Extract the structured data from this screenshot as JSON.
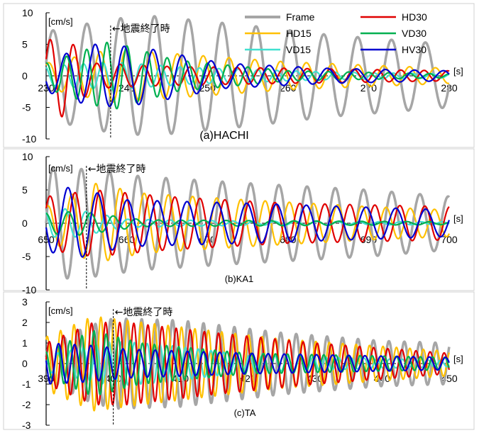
{
  "colors": {
    "Frame": "#A6A6A6",
    "HD15": "#FFC000",
    "VD15": "#40E0D0",
    "HD30": "#E00000",
    "VD30": "#00B050",
    "HV30": "#0000D0"
  },
  "legend": {
    "entries": [
      "Frame",
      "HD15",
      "VD15",
      "HD30",
      "VD30",
      "HV30"
    ],
    "placement": "top-right of panel (a)"
  },
  "chart_data": [
    {
      "type": "line",
      "caption": "(a)HACHI",
      "y_unit_label": "[cm/s]",
      "x_unit_label": "[s]",
      "xlim": [
        230,
        280
      ],
      "xticks": [
        230,
        240,
        250,
        260,
        270,
        280
      ],
      "ylim": [
        -10,
        10
      ],
      "yticks": [
        10,
        5,
        0,
        -5,
        -10
      ],
      "annotation": {
        "text": "←地震終了時",
        "x": 238
      },
      "series": [
        {
          "name": "Frame",
          "period": 4.2,
          "start": 230.0,
          "end": 280.0,
          "phase": 0.3,
          "peaks": [
            [
              230,
              7
            ],
            [
              238,
              9
            ],
            [
              243,
              9.5
            ],
            [
              255,
              8
            ],
            [
              265,
              6.5
            ],
            [
              280,
              5
            ]
          ]
        },
        {
          "name": "HD15",
          "period": 3.2,
          "start": 230.0,
          "end": 280.0,
          "phase": 1.0,
          "peaks": [
            [
              230,
              2
            ],
            [
              238,
              4.2
            ],
            [
              246,
              3.5
            ],
            [
              260,
              2.2
            ],
            [
              280,
              1.2
            ]
          ]
        },
        {
          "name": "VD15",
          "period": 2.4,
          "start": 230.0,
          "end": 280.0,
          "phase": 2.0,
          "peaks": [
            [
              230,
              1.5
            ],
            [
              238,
              2.2
            ],
            [
              248,
              1.3
            ],
            [
              265,
              0.6
            ],
            [
              280,
              0.3
            ]
          ]
        },
        {
          "name": "HD30",
          "period": 2.9,
          "start": 230.0,
          "end": 280.0,
          "phase": 0.5,
          "peaks": [
            [
              230,
              5.5
            ],
            [
              232,
              6.5
            ],
            [
              236,
              2
            ],
            [
              245,
              1.5
            ],
            [
              260,
              1.2
            ],
            [
              280,
              0.8
            ]
          ]
        },
        {
          "name": "VD30",
          "period": 2.5,
          "start": 230.0,
          "end": 280.0,
          "phase": 1.5,
          "peaks": [
            [
              230,
              2
            ],
            [
              238,
              5.5
            ],
            [
              246,
              2.5
            ],
            [
              260,
              0.8
            ],
            [
              280,
              0.3
            ]
          ]
        },
        {
          "name": "HV30",
          "period": 3.6,
          "start": 230.0,
          "end": 280.0,
          "phase": 3.5,
          "peaks": [
            [
              230,
              2.5
            ],
            [
              236,
              5
            ],
            [
              242,
              4.5
            ],
            [
              252,
              2
            ],
            [
              265,
              1.2
            ],
            [
              280,
              0.8
            ]
          ]
        }
      ]
    },
    {
      "type": "line",
      "caption": "(b)KA1",
      "y_unit_label": "[cm/s]",
      "x_unit_label": "[s]",
      "xlim": [
        650,
        700
      ],
      "xticks": [
        650,
        660,
        670,
        680,
        690,
        700
      ],
      "ylim": [
        -10,
        10
      ],
      "yticks": [
        10,
        5,
        0,
        -5,
        -10
      ],
      "annotation": {
        "text": "←地震終了時",
        "x": 655
      },
      "series": [
        {
          "name": "Frame",
          "period": 3.5,
          "start": 650.0,
          "end": 700.0,
          "phase": 0.0,
          "peaks": [
            [
              650,
              8.5
            ],
            [
              656,
              8
            ],
            [
              662,
              7
            ],
            [
              675,
              6
            ],
            [
              690,
              5
            ],
            [
              700,
              4
            ]
          ]
        },
        {
          "name": "HD15",
          "period": 3.0,
          "start": 650.0,
          "end": 700.0,
          "phase": 1.2,
          "peaks": [
            [
              650,
              2.5
            ],
            [
              656,
              6
            ],
            [
              662,
              4.5
            ],
            [
              675,
              3.5
            ],
            [
              690,
              2.5
            ],
            [
              700,
              2
            ]
          ]
        },
        {
          "name": "VD15",
          "period": 2.6,
          "start": 650.0,
          "end": 700.0,
          "phase": 2.2,
          "peaks": [
            [
              650,
              2
            ],
            [
              653,
              2.2
            ],
            [
              660,
              0.6
            ],
            [
              675,
              0.3
            ],
            [
              700,
              0.2
            ]
          ]
        },
        {
          "name": "HD30",
          "period": 3.1,
          "start": 650.0,
          "end": 700.0,
          "phase": 0.6,
          "peaks": [
            [
              650,
              4
            ],
            [
              656,
              5
            ],
            [
              665,
              4
            ],
            [
              680,
              3
            ],
            [
              700,
              2.5
            ]
          ]
        },
        {
          "name": "VD30",
          "period": 2.8,
          "start": 650.0,
          "end": 700.0,
          "phase": 1.7,
          "peaks": [
            [
              650,
              1.5
            ],
            [
              654,
              1.8
            ],
            [
              662,
              0.5
            ],
            [
              700,
              0.2
            ]
          ]
        },
        {
          "name": "HV30",
          "period": 3.7,
          "start": 650.0,
          "end": 700.0,
          "phase": 3.3,
          "peaks": [
            [
              650,
              4
            ],
            [
              653,
              5.5
            ],
            [
              660,
              3.5
            ],
            [
              675,
              3
            ],
            [
              700,
              2
            ]
          ]
        }
      ]
    },
    {
      "type": "line",
      "caption": "(c)TA",
      "y_unit_label": "[cm/s]",
      "x_unit_label": "[s]",
      "xlim": [
        390,
        450
      ],
      "xticks": [
        390,
        400,
        410,
        420,
        430,
        440,
        450
      ],
      "ylim": [
        -3,
        3
      ],
      "yticks": [
        3,
        2,
        1,
        0,
        -1,
        -2,
        -3
      ],
      "annotation": {
        "text": "←地震終了時",
        "x": 400
      },
      "series": [
        {
          "name": "Frame",
          "period": 2.3,
          "start": 390.0,
          "end": 450.0,
          "phase": 0.4,
          "peaks": [
            [
              390,
              0.8
            ],
            [
              396,
              1.8
            ],
            [
              400,
              2.2
            ],
            [
              410,
              2.1
            ],
            [
              425,
              1.5
            ],
            [
              440,
              1.1
            ],
            [
              450,
              1.0
            ]
          ]
        },
        {
          "name": "HD15",
          "period": 2.0,
          "start": 390.0,
          "end": 450.0,
          "phase": 1.1,
          "peaks": [
            [
              390,
              1.3
            ],
            [
              397,
              2.3
            ],
            [
              402,
              2.1
            ],
            [
              412,
              1.7
            ],
            [
              425,
              1.2
            ],
            [
              450,
              0.6
            ]
          ]
        },
        {
          "name": "VD15",
          "period": 1.9,
          "start": 390.0,
          "end": 450.0,
          "phase": 2.1,
          "peaks": [
            [
              390,
              0.4
            ],
            [
              396,
              0.8
            ],
            [
              400,
              1.1
            ],
            [
              408,
              0.9
            ],
            [
              420,
              0.4
            ],
            [
              450,
              0.15
            ]
          ]
        },
        {
          "name": "HD30",
          "period": 2.1,
          "start": 390.0,
          "end": 450.0,
          "phase": 0.2,
          "peaks": [
            [
              390,
              1.0
            ],
            [
              397,
              2.0
            ],
            [
              402,
              2.0
            ],
            [
              415,
              1.5
            ],
            [
              430,
              1.0
            ],
            [
              450,
              0.5
            ]
          ]
        },
        {
          "name": "VD30",
          "period": 1.8,
          "start": 390.0,
          "end": 450.0,
          "phase": 1.8,
          "peaks": [
            [
              390,
              0.6
            ],
            [
              397,
              1.6
            ],
            [
              404,
              1.0
            ],
            [
              420,
              0.5
            ],
            [
              450,
              0.3
            ]
          ]
        },
        {
          "name": "HV30",
          "period": 2.4,
          "start": 390.0,
          "end": 450.0,
          "phase": 3.0,
          "peaks": [
            [
              390,
              1.0
            ],
            [
              396,
              0.9
            ],
            [
              402,
              0.7
            ],
            [
              420,
              0.5
            ],
            [
              450,
              0.3
            ]
          ]
        }
      ]
    }
  ]
}
